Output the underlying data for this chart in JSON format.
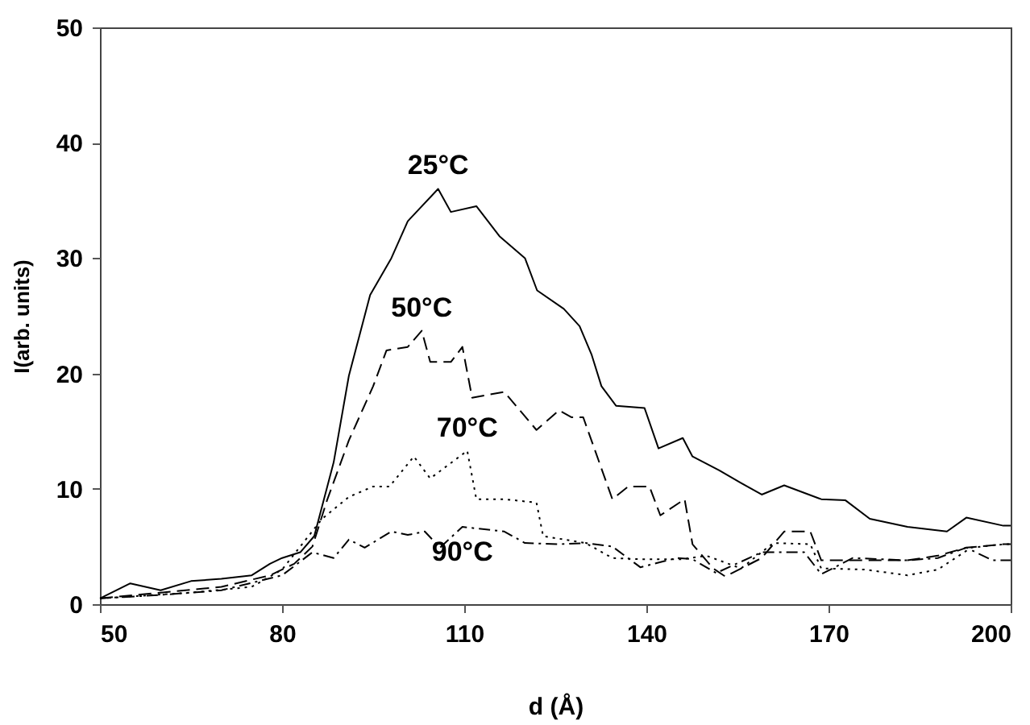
{
  "chart_data": {
    "type": "line",
    "xlabel": "d (Å)",
    "ylabel": "I(arb. units)",
    "xlim": [
      50,
      200
    ],
    "ylim": [
      0,
      50
    ],
    "xticks": [
      50,
      80,
      110,
      140,
      170,
      200
    ],
    "yticks": [
      0,
      10,
      20,
      30,
      40,
      50
    ],
    "grid": false,
    "series": [
      {
        "name": "25°C",
        "color": "#000000",
        "line_style": "solid",
        "x": [
          50,
          55,
          60,
          65,
          70,
          75,
          78,
          80,
          83,
          85.3,
          88.5,
          91,
          94.5,
          98,
          100.7,
          105.7,
          107.8,
          112,
          115.8,
          120,
          122,
          126.4,
          129,
          131,
          132.6,
          135,
          139.7,
          142,
          146,
          147.6,
          152,
          155.6,
          159,
          162.7,
          168.8,
          172.8,
          176.8,
          183,
          189.5,
          192.7,
          198.8,
          200
        ],
        "values": [
          0.5,
          1.8,
          1.2,
          2,
          2.2,
          2.5,
          3.5,
          4,
          4.5,
          5.9,
          12.3,
          19.8,
          26.8,
          30,
          33.2,
          36,
          34,
          34.5,
          31.9,
          30,
          27.2,
          25.6,
          24.1,
          21.6,
          18.9,
          17.2,
          17,
          13.5,
          14.4,
          12.8,
          11.6,
          10.5,
          9.5,
          10.3,
          9.1,
          9,
          7.4,
          6.7,
          6.3,
          7.5,
          6.8,
          6.8
        ]
      },
      {
        "name": "50°C",
        "color": "#000000",
        "line_style": "dashed",
        "x": [
          50,
          60,
          70,
          78,
          82,
          85,
          87.4,
          91,
          95,
          97.2,
          100.7,
          103,
          104.4,
          107.8,
          109.7,
          111.3,
          116.6,
          121.9,
          125.6,
          127.7,
          129.6,
          134.4,
          137,
          140.5,
          142.3,
          146.3,
          147.6,
          151,
          153,
          159,
          162.7,
          167,
          168.8,
          174,
          183,
          188,
          192.7,
          198.8,
          200
        ],
        "values": [
          0.5,
          1,
          1.5,
          2.5,
          3.5,
          5,
          9,
          14.2,
          18.9,
          22,
          22.3,
          23.7,
          21,
          21,
          22.3,
          17.9,
          18.4,
          15.1,
          16.8,
          16.2,
          16.2,
          9.1,
          10.2,
          10.2,
          7.7,
          9.1,
          5.2,
          3.1,
          2.4,
          4,
          6.3,
          6.3,
          3.8,
          3.8,
          3.8,
          4.2,
          4.9,
          5.2,
          5.2
        ]
      },
      {
        "name": "70°C",
        "color": "#000000",
        "line_style": "dotted",
        "x": [
          50,
          65,
          75,
          80,
          86.6,
          91,
          95,
          97.7,
          101.7,
          104.4,
          110.5,
          112,
          116.6,
          121.9,
          123,
          130,
          134.4,
          139,
          145.8,
          149.9,
          155.6,
          160.9,
          167,
          168.8,
          176,
          183,
          188,
          193.5,
          199,
          200
        ],
        "values": [
          0.5,
          1,
          1.5,
          3,
          7.4,
          9.3,
          10.2,
          10.2,
          12.8,
          10.9,
          13.3,
          9.1,
          9.1,
          8.8,
          5.9,
          5.3,
          4,
          3.9,
          3.9,
          4.2,
          3.1,
          5.3,
          5.2,
          3.1,
          3,
          2.5,
          3,
          4.9,
          5.2,
          5.2
        ]
      },
      {
        "name": "90°C",
        "color": "#000000",
        "line_style": "dashdot",
        "x": [
          50,
          60,
          70,
          80,
          85,
          88.5,
          91,
          93.6,
          98,
          100.7,
          103.5,
          106,
          109.7,
          116.6,
          120,
          125.6,
          130,
          134.4,
          139,
          145,
          147.6,
          151.5,
          159,
          166,
          168.8,
          174,
          183,
          188,
          192.7,
          197,
          200
        ],
        "values": [
          0.5,
          0.8,
          1.2,
          2.5,
          4.5,
          4,
          5.6,
          4.9,
          6.3,
          6,
          6.3,
          4.9,
          6.7,
          6.3,
          5.3,
          5.2,
          5.3,
          5,
          3.2,
          4,
          3.9,
          2.7,
          4.5,
          4.5,
          2.6,
          4,
          3.8,
          4,
          4.9,
          3.8,
          3.8
        ]
      }
    ]
  }
}
